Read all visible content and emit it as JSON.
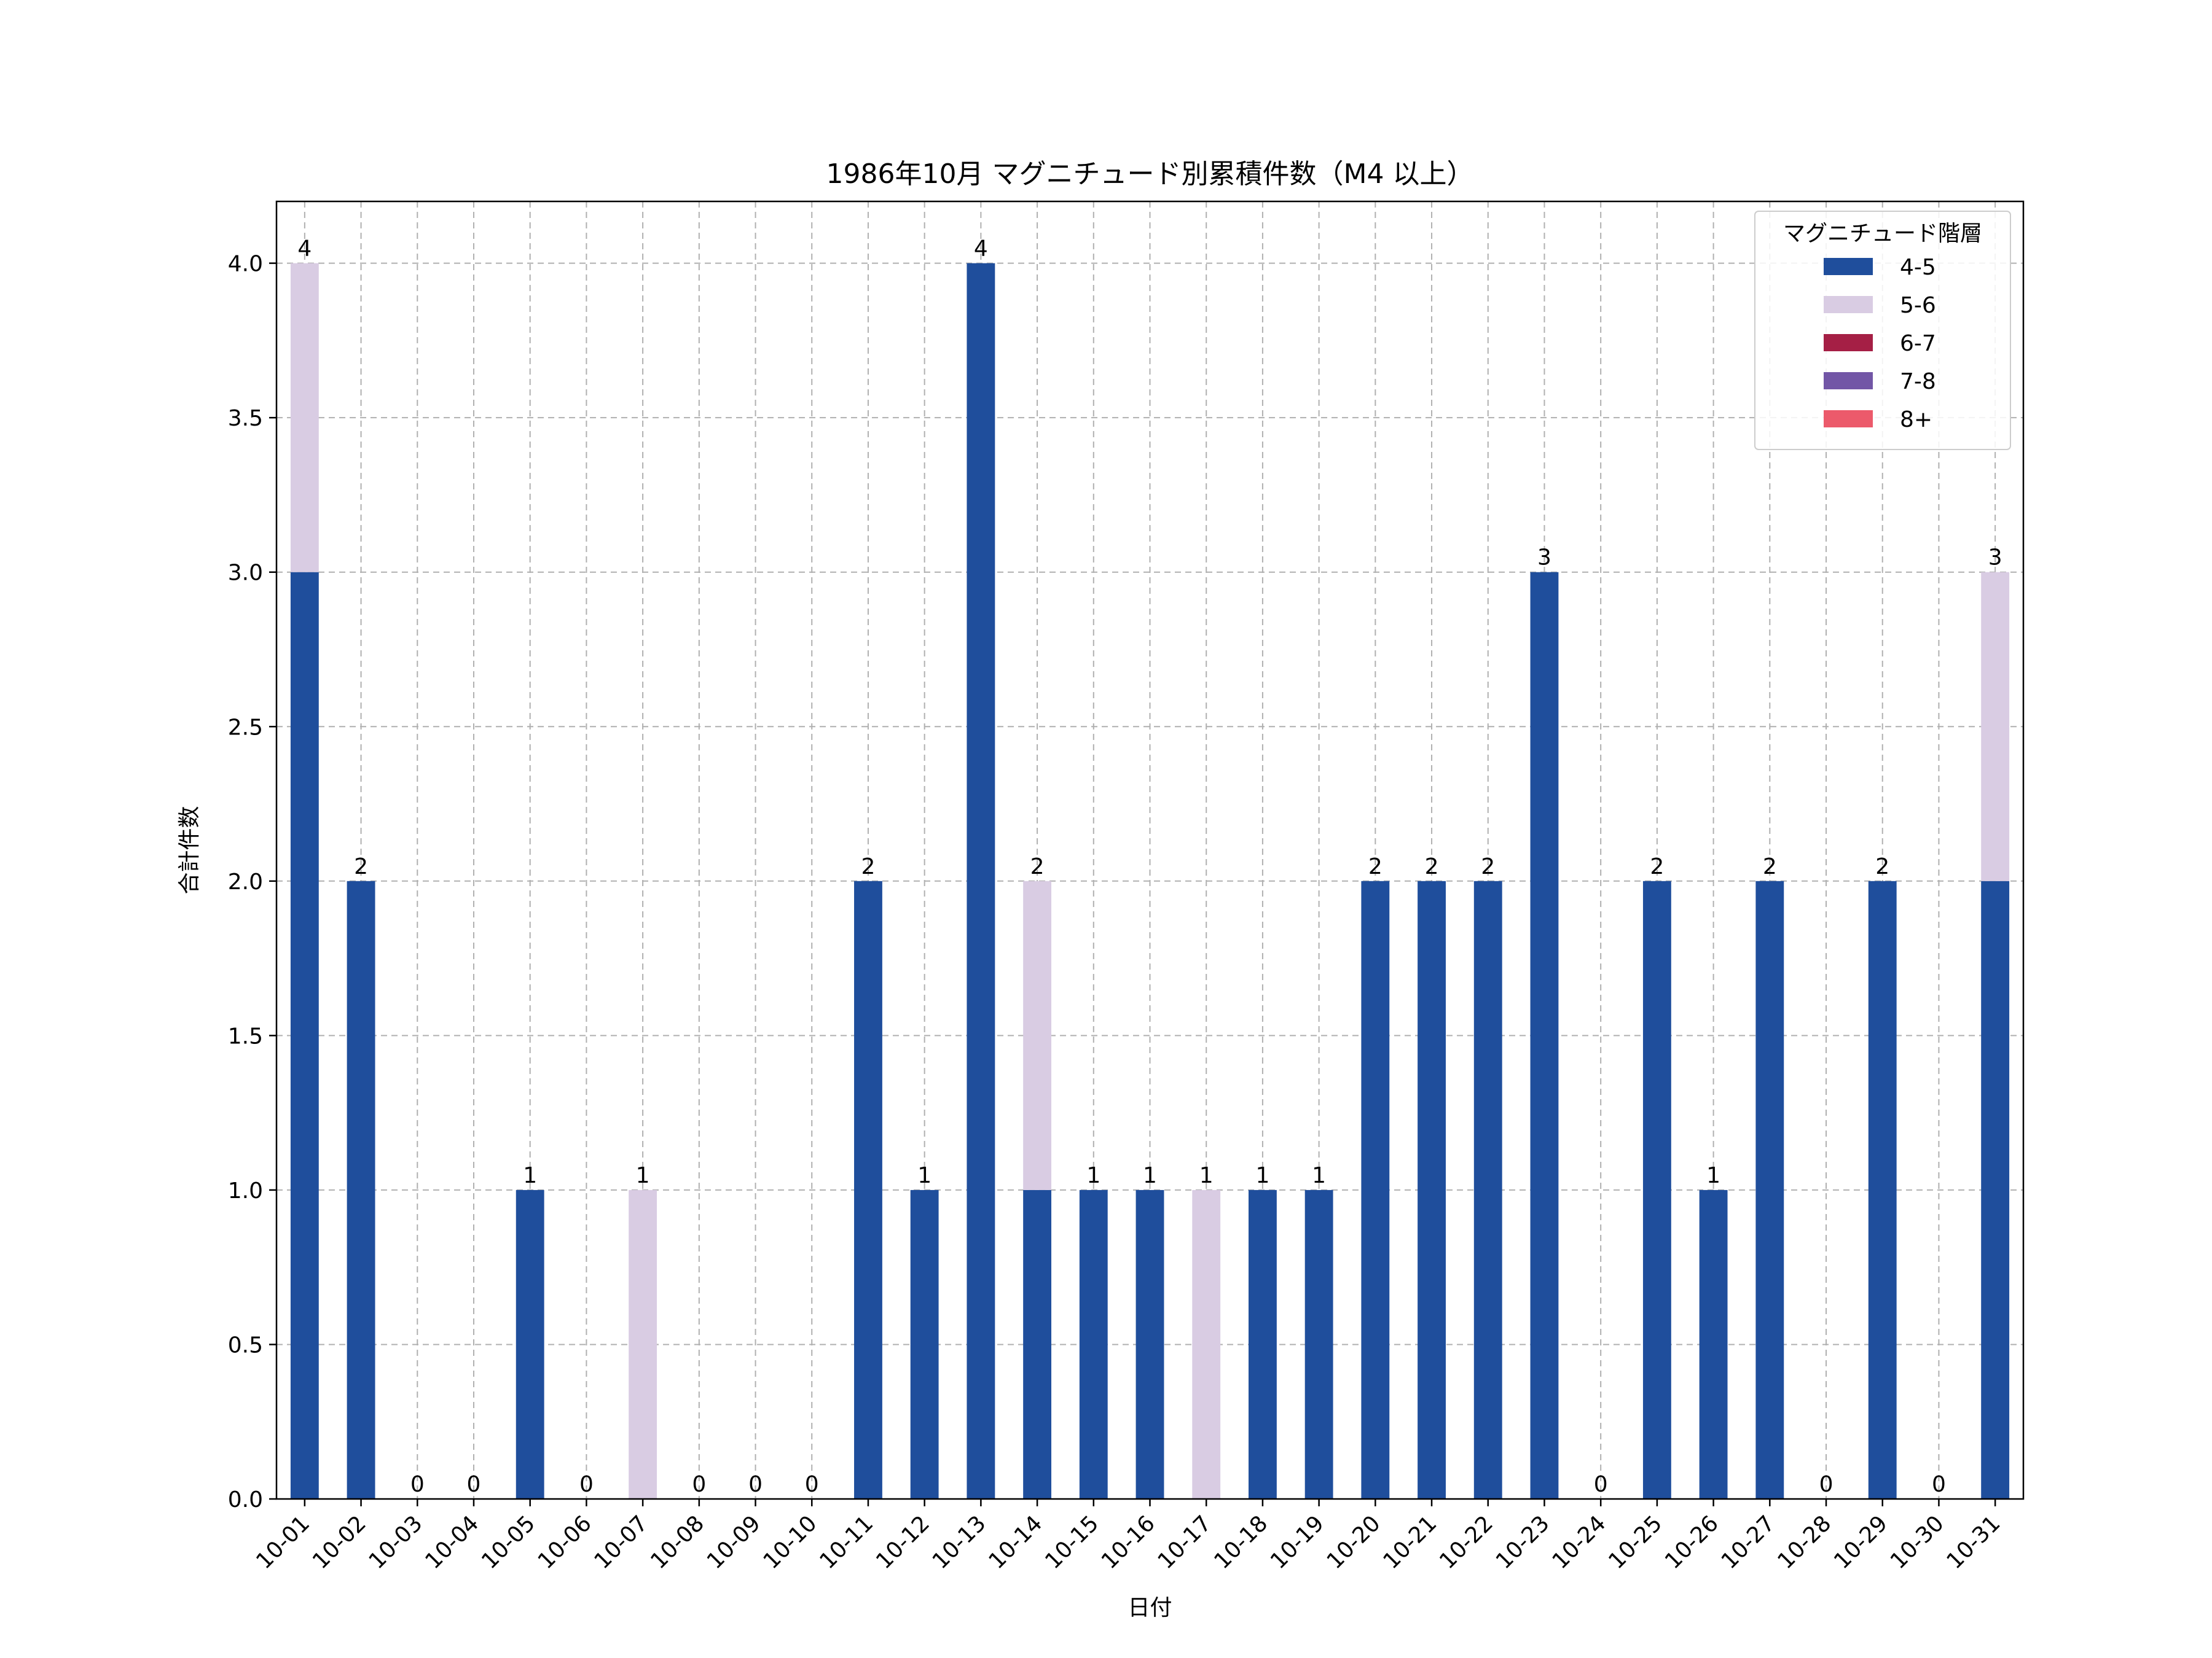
{
  "chart_data": {
    "type": "bar",
    "stacked": true,
    "title": "1986年10月 マグニチュード別累積件数（M4 以上）",
    "xlabel": "日付",
    "ylabel": "合計件数",
    "ylim": [
      0,
      4.2
    ],
    "yticks": [
      "0.0",
      "0.5",
      "1.0",
      "1.5",
      "2.0",
      "2.5",
      "3.0",
      "3.5",
      "4.0"
    ],
    "grid": true,
    "legend_position": "top-right",
    "legend_title": "マグニチュード階層",
    "categories": [
      "10-01",
      "10-02",
      "10-03",
      "10-04",
      "10-05",
      "10-06",
      "10-07",
      "10-08",
      "10-09",
      "10-10",
      "10-11",
      "10-12",
      "10-13",
      "10-14",
      "10-15",
      "10-16",
      "10-17",
      "10-18",
      "10-19",
      "10-20",
      "10-21",
      "10-22",
      "10-23",
      "10-24",
      "10-25",
      "10-26",
      "10-27",
      "10-28",
      "10-29",
      "10-30",
      "10-31"
    ],
    "series": [
      {
        "name": "4-5",
        "color": "#1f4e9c",
        "values": [
          3,
          2,
          0,
          0,
          1,
          0,
          0,
          0,
          0,
          0,
          2,
          1,
          4,
          1,
          1,
          1,
          0,
          1,
          1,
          2,
          2,
          2,
          3,
          0,
          2,
          1,
          2,
          0,
          2,
          0,
          2
        ]
      },
      {
        "name": "5-6",
        "color": "#d9cce3",
        "values": [
          1,
          0,
          0,
          0,
          0,
          0,
          1,
          0,
          0,
          0,
          0,
          0,
          0,
          1,
          0,
          0,
          1,
          0,
          0,
          0,
          0,
          0,
          0,
          0,
          0,
          0,
          0,
          0,
          0,
          0,
          1
        ]
      },
      {
        "name": "6-7",
        "color": "#a51f45",
        "values": [
          0,
          0,
          0,
          0,
          0,
          0,
          0,
          0,
          0,
          0,
          0,
          0,
          0,
          0,
          0,
          0,
          0,
          0,
          0,
          0,
          0,
          0,
          0,
          0,
          0,
          0,
          0,
          0,
          0,
          0,
          0
        ]
      },
      {
        "name": "7-8",
        "color": "#7256a6",
        "values": [
          0,
          0,
          0,
          0,
          0,
          0,
          0,
          0,
          0,
          0,
          0,
          0,
          0,
          0,
          0,
          0,
          0,
          0,
          0,
          0,
          0,
          0,
          0,
          0,
          0,
          0,
          0,
          0,
          0,
          0,
          0
        ]
      },
      {
        "name": "8+",
        "color": "#ec5a6b",
        "values": [
          0,
          0,
          0,
          0,
          0,
          0,
          0,
          0,
          0,
          0,
          0,
          0,
          0,
          0,
          0,
          0,
          0,
          0,
          0,
          0,
          0,
          0,
          0,
          0,
          0,
          0,
          0,
          0,
          0,
          0,
          0
        ]
      }
    ],
    "totals": [
      "4",
      "2",
      "0",
      "0",
      "1",
      "0",
      "1",
      "0",
      "0",
      "0",
      "2",
      "1",
      "4",
      "2",
      "1",
      "1",
      "1",
      "1",
      "1",
      "2",
      "2",
      "2",
      "3",
      "0",
      "2",
      "1",
      "2",
      "0",
      "2",
      "0",
      "3"
    ]
  }
}
